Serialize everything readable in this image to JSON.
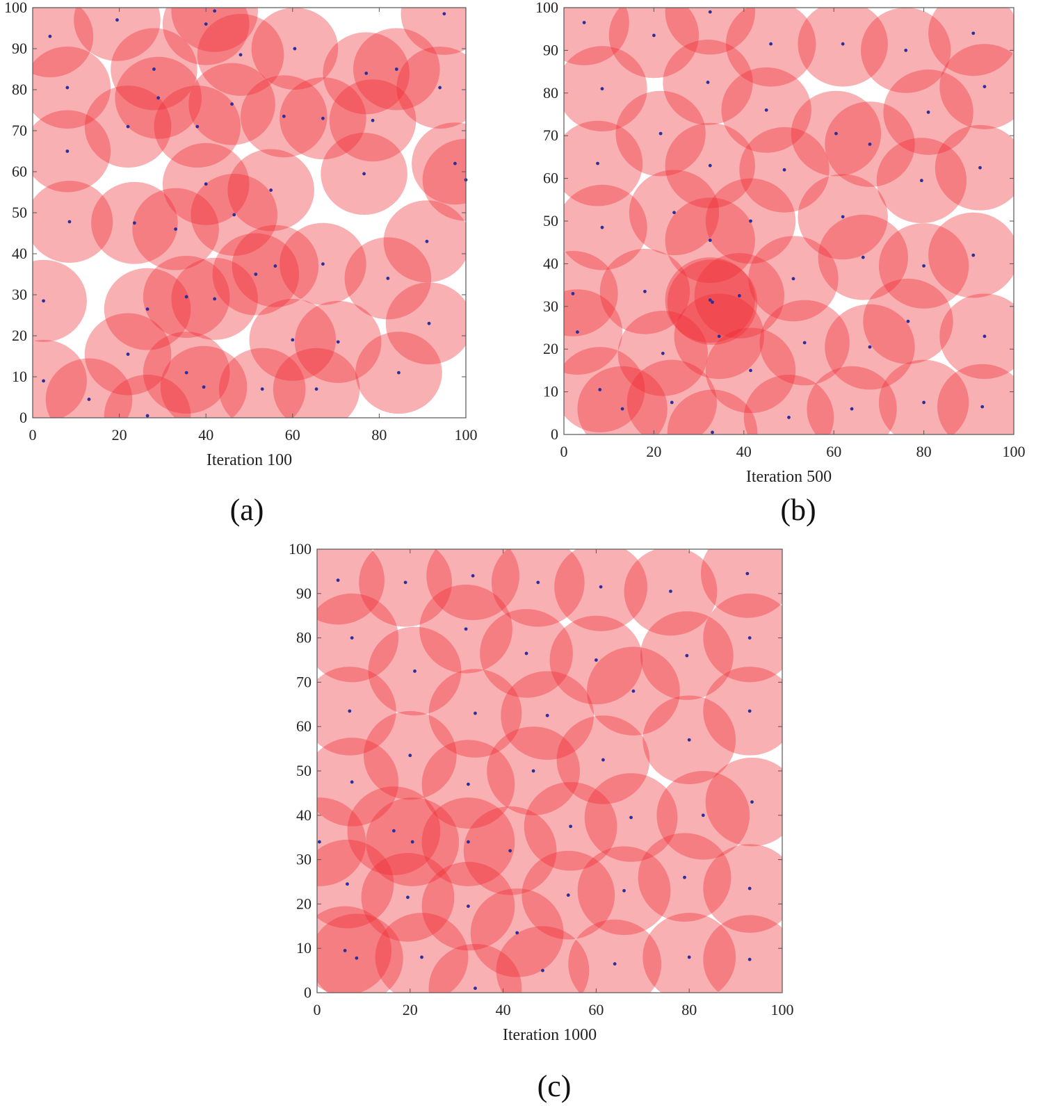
{
  "figure": {
    "colors": {
      "coverage": "#ee2a30",
      "sensor": "#2b2f9e",
      "axis": "#555555"
    }
  },
  "chart_data": [
    {
      "type": "scatter",
      "panel_label": "(a)",
      "xlabel": "Iteration 100",
      "ylabel": "",
      "xlim": [
        0,
        100
      ],
      "ylim": [
        0,
        100
      ],
      "xticks": [
        0,
        20,
        40,
        60,
        80,
        100
      ],
      "yticks": [
        0,
        10,
        20,
        30,
        40,
        50,
        60,
        70,
        80,
        90,
        100
      ],
      "sensing_radius": 10,
      "sensors": [
        {
          "x": 4,
          "y": 93
        },
        {
          "x": 19.5,
          "y": 97
        },
        {
          "x": 40,
          "y": 96
        },
        {
          "x": 42,
          "y": 99.2
        },
        {
          "x": 60.5,
          "y": 90
        },
        {
          "x": 95,
          "y": 98.5
        },
        {
          "x": 8,
          "y": 80.5
        },
        {
          "x": 28,
          "y": 85
        },
        {
          "x": 29,
          "y": 78
        },
        {
          "x": 48,
          "y": 88.5
        },
        {
          "x": 77,
          "y": 84
        },
        {
          "x": 84,
          "y": 85
        },
        {
          "x": 94,
          "y": 80.5
        },
        {
          "x": 22,
          "y": 71
        },
        {
          "x": 38,
          "y": 71
        },
        {
          "x": 46,
          "y": 76.5
        },
        {
          "x": 58,
          "y": 73.5
        },
        {
          "x": 67,
          "y": 73
        },
        {
          "x": 78.5,
          "y": 72.5
        },
        {
          "x": 8,
          "y": 65
        },
        {
          "x": 40,
          "y": 57
        },
        {
          "x": 55,
          "y": 55.5
        },
        {
          "x": 76.5,
          "y": 59.5
        },
        {
          "x": 97.5,
          "y": 62
        },
        {
          "x": 100,
          "y": 58
        },
        {
          "x": 8.5,
          "y": 47.8
        },
        {
          "x": 23.5,
          "y": 47.5
        },
        {
          "x": 33,
          "y": 46
        },
        {
          "x": 46.5,
          "y": 49.5
        },
        {
          "x": 91,
          "y": 43
        },
        {
          "x": 2.5,
          "y": 28.5
        },
        {
          "x": 51.5,
          "y": 35
        },
        {
          "x": 56,
          "y": 37
        },
        {
          "x": 67,
          "y": 37.5
        },
        {
          "x": 82,
          "y": 34
        },
        {
          "x": 26.5,
          "y": 26.5
        },
        {
          "x": 35.5,
          "y": 29.5
        },
        {
          "x": 42,
          "y": 29
        },
        {
          "x": 60,
          "y": 19
        },
        {
          "x": 70.5,
          "y": 18.5
        },
        {
          "x": 91.5,
          "y": 23
        },
        {
          "x": 22,
          "y": 15.5
        },
        {
          "x": 2.5,
          "y": 9
        },
        {
          "x": 13,
          "y": 4.5
        },
        {
          "x": 35.5,
          "y": 11
        },
        {
          "x": 39.5,
          "y": 7.5
        },
        {
          "x": 53,
          "y": 7
        },
        {
          "x": 65.5,
          "y": 7
        },
        {
          "x": 84.5,
          "y": 11
        },
        {
          "x": 26.5,
          "y": 0.5
        }
      ]
    },
    {
      "type": "scatter",
      "panel_label": "(b)",
      "xlabel": "Iteration 500",
      "ylabel": "",
      "xlim": [
        0,
        100
      ],
      "ylim": [
        0,
        100
      ],
      "xticks": [
        0,
        20,
        40,
        60,
        80,
        100
      ],
      "yticks": [
        0,
        10,
        20,
        30,
        40,
        50,
        60,
        70,
        80,
        90,
        100
      ],
      "sensing_radius": 10,
      "sensors": [
        {
          "x": 4.5,
          "y": 96.5
        },
        {
          "x": 20,
          "y": 93.5
        },
        {
          "x": 32.5,
          "y": 99
        },
        {
          "x": 46,
          "y": 91.5
        },
        {
          "x": 62,
          "y": 91.5
        },
        {
          "x": 76,
          "y": 90
        },
        {
          "x": 91,
          "y": 94
        },
        {
          "x": 8.5,
          "y": 81
        },
        {
          "x": 32,
          "y": 82.5
        },
        {
          "x": 45,
          "y": 76
        },
        {
          "x": 81,
          "y": 75.5
        },
        {
          "x": 93.5,
          "y": 81.5
        },
        {
          "x": 21.5,
          "y": 70.5
        },
        {
          "x": 60.5,
          "y": 70.5
        },
        {
          "x": 68,
          "y": 68
        },
        {
          "x": 7.5,
          "y": 63.5
        },
        {
          "x": 32.5,
          "y": 63
        },
        {
          "x": 49,
          "y": 62
        },
        {
          "x": 79.5,
          "y": 59.5
        },
        {
          "x": 92.5,
          "y": 62.5
        },
        {
          "x": 8.5,
          "y": 48.5
        },
        {
          "x": 24.5,
          "y": 52
        },
        {
          "x": 41.5,
          "y": 50
        },
        {
          "x": 62,
          "y": 51
        },
        {
          "x": 32.5,
          "y": 45.5
        },
        {
          "x": 66.5,
          "y": 41.5
        },
        {
          "x": 80,
          "y": 39.5
        },
        {
          "x": 91,
          "y": 42
        },
        {
          "x": 2,
          "y": 33
        },
        {
          "x": 18,
          "y": 33.5
        },
        {
          "x": 32.5,
          "y": 31.5
        },
        {
          "x": 33,
          "y": 31
        },
        {
          "x": 39,
          "y": 32.5
        },
        {
          "x": 51,
          "y": 36.5
        },
        {
          "x": 3,
          "y": 24
        },
        {
          "x": 22,
          "y": 19
        },
        {
          "x": 34.5,
          "y": 23
        },
        {
          "x": 53.5,
          "y": 21.5
        },
        {
          "x": 68,
          "y": 20.5
        },
        {
          "x": 76.5,
          "y": 26.5
        },
        {
          "x": 93.5,
          "y": 23
        },
        {
          "x": 41.5,
          "y": 15
        },
        {
          "x": 8,
          "y": 10.5
        },
        {
          "x": 13,
          "y": 6
        },
        {
          "x": 24,
          "y": 7.5
        },
        {
          "x": 50,
          "y": 4
        },
        {
          "x": 64,
          "y": 6
        },
        {
          "x": 80,
          "y": 7.5
        },
        {
          "x": 93,
          "y": 6.5
        },
        {
          "x": 33,
          "y": 0.5
        }
      ]
    },
    {
      "type": "scatter",
      "panel_label": "(c)",
      "xlabel": "Iteration 1000",
      "ylabel": "",
      "xlim": [
        0,
        100
      ],
      "ylim": [
        0,
        100
      ],
      "xticks": [
        0,
        20,
        40,
        60,
        80,
        100
      ],
      "yticks": [
        0,
        10,
        20,
        30,
        40,
        50,
        60,
        70,
        80,
        90,
        100
      ],
      "sensing_radius": 10,
      "sensors": [
        {
          "x": 4.5,
          "y": 93
        },
        {
          "x": 19,
          "y": 92.5
        },
        {
          "x": 33.5,
          "y": 94
        },
        {
          "x": 47.5,
          "y": 92.5
        },
        {
          "x": 61,
          "y": 91.5
        },
        {
          "x": 76,
          "y": 90.5
        },
        {
          "x": 92.5,
          "y": 94.5
        },
        {
          "x": 7.5,
          "y": 80
        },
        {
          "x": 32,
          "y": 82
        },
        {
          "x": 45,
          "y": 76.5
        },
        {
          "x": 60,
          "y": 75
        },
        {
          "x": 79.5,
          "y": 76
        },
        {
          "x": 93,
          "y": 80
        },
        {
          "x": 21,
          "y": 72.5
        },
        {
          "x": 68,
          "y": 68
        },
        {
          "x": 7,
          "y": 63.5
        },
        {
          "x": 34,
          "y": 63
        },
        {
          "x": 49.5,
          "y": 62.5
        },
        {
          "x": 80,
          "y": 57
        },
        {
          "x": 93,
          "y": 63.5
        },
        {
          "x": 20,
          "y": 53.5
        },
        {
          "x": 61.5,
          "y": 52.5
        },
        {
          "x": 7.5,
          "y": 47.5
        },
        {
          "x": 32.5,
          "y": 47
        },
        {
          "x": 46.5,
          "y": 50
        },
        {
          "x": 67.5,
          "y": 39.5
        },
        {
          "x": 83,
          "y": 40
        },
        {
          "x": 93.5,
          "y": 43
        },
        {
          "x": 0.5,
          "y": 34
        },
        {
          "x": 16.5,
          "y": 36.5
        },
        {
          "x": 20.5,
          "y": 34
        },
        {
          "x": 32.5,
          "y": 34
        },
        {
          "x": 41.5,
          "y": 32
        },
        {
          "x": 54.5,
          "y": 37.5
        },
        {
          "x": 6.5,
          "y": 24.5
        },
        {
          "x": 19.5,
          "y": 21.5
        },
        {
          "x": 32.5,
          "y": 19.5
        },
        {
          "x": 54,
          "y": 22
        },
        {
          "x": 66,
          "y": 23
        },
        {
          "x": 79,
          "y": 26
        },
        {
          "x": 93,
          "y": 23.5
        },
        {
          "x": 43,
          "y": 13.5
        },
        {
          "x": 6,
          "y": 9.5
        },
        {
          "x": 8.5,
          "y": 7.8
        },
        {
          "x": 22.5,
          "y": 8
        },
        {
          "x": 48.5,
          "y": 5
        },
        {
          "x": 64,
          "y": 6.5
        },
        {
          "x": 80,
          "y": 8
        },
        {
          "x": 93,
          "y": 7.5
        },
        {
          "x": 34,
          "y": 1
        }
      ]
    }
  ]
}
